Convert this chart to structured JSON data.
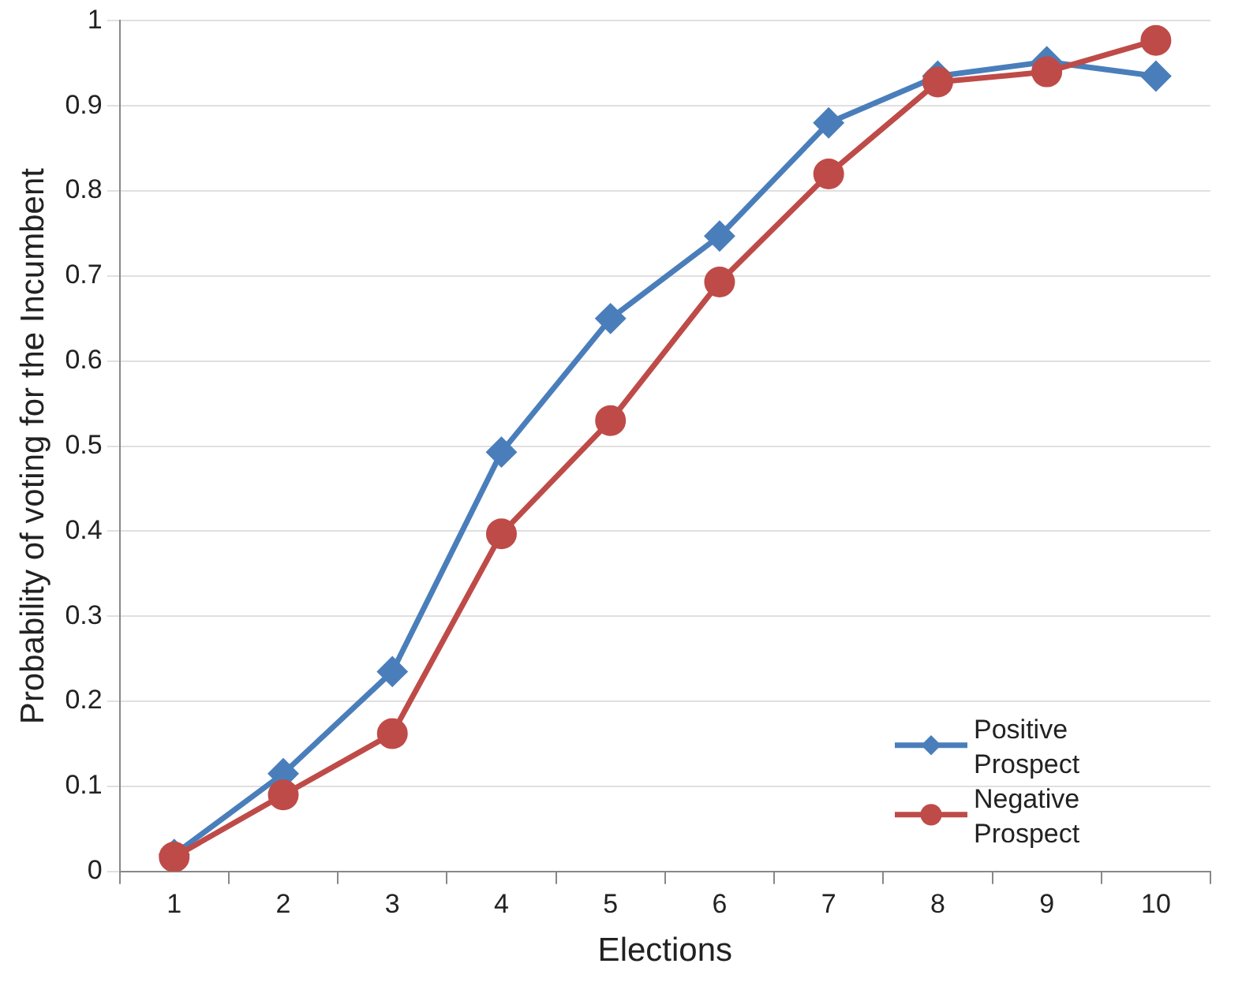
{
  "chart_data": {
    "type": "line",
    "xlabel": "Elections",
    "ylabel": "Probability of voting for the Incumbent",
    "categories": [
      "1",
      "2",
      "3",
      "4",
      "5",
      "6",
      "7",
      "8",
      "9",
      "10"
    ],
    "series": [
      {
        "name": "Positive Prospect",
        "color": "#4a7ebb",
        "marker": "diamond",
        "values": [
          0.02,
          0.115,
          0.235,
          0.493,
          0.65,
          0.747,
          0.88,
          0.935,
          0.952,
          0.935
        ]
      },
      {
        "name": "Negative Prospect",
        "color": "#be4b48",
        "marker": "circle",
        "values": [
          0.017,
          0.09,
          0.162,
          0.397,
          0.53,
          0.693,
          0.82,
          0.928,
          0.94,
          0.977
        ]
      }
    ],
    "ylim": [
      0,
      1
    ],
    "yticks": [
      0,
      0.1,
      0.2,
      0.3,
      0.4,
      0.5,
      0.6,
      0.7,
      0.8,
      0.9,
      1
    ],
    "grid": "y",
    "legend": "bottom right",
    "line_style": "solid"
  }
}
